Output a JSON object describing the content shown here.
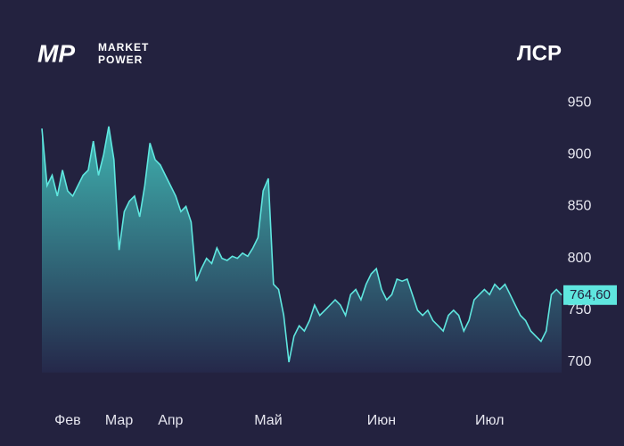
{
  "header": {
    "logo": "MP",
    "brand": [
      "MARKET",
      "POWER"
    ]
  },
  "chart_data": {
    "type": "area",
    "title": "ЛСР",
    "categories": [
      null,
      null,
      null,
      null,
      null,
      "Фев",
      null,
      null,
      null,
      null,
      null,
      null,
      null,
      null,
      null,
      "Мар",
      null,
      null,
      null,
      null,
      null,
      null,
      null,
      null,
      null,
      "Апр",
      null,
      null,
      null,
      null,
      null,
      null,
      null,
      null,
      null,
      null,
      null,
      null,
      null,
      null,
      null,
      null,
      null,
      null,
      "Май",
      null,
      null,
      null,
      null,
      null,
      null,
      null,
      null,
      null,
      null,
      null,
      null,
      null,
      null,
      null,
      null,
      null,
      null,
      null,
      null,
      null,
      "Июн",
      null,
      null,
      null,
      null,
      null,
      null,
      null,
      null,
      null,
      null,
      null,
      null,
      null,
      null,
      null,
      null,
      null,
      null,
      null,
      null,
      "Июл",
      null,
      null,
      null,
      null,
      null,
      null,
      null,
      null,
      null,
      null,
      null,
      null,
      null,
      null
    ],
    "series": [
      {
        "name": "ЛСР",
        "color": "#5fe6df",
        "values": [
          925,
          870,
          880,
          860,
          885,
          865,
          860,
          870,
          880,
          885,
          913,
          880,
          900,
          927,
          895,
          808,
          845,
          855,
          860,
          840,
          870,
          911,
          895,
          890,
          880,
          870,
          860,
          845,
          850,
          835,
          778,
          790,
          800,
          795,
          810,
          800,
          798,
          802,
          800,
          805,
          802,
          810,
          820,
          865,
          877,
          775,
          770,
          745,
          700,
          725,
          735,
          730,
          740,
          755,
          745,
          750,
          755,
          760,
          755,
          745,
          765,
          770,
          760,
          775,
          785,
          790,
          770,
          760,
          765,
          780,
          778,
          780,
          765,
          750,
          745,
          750,
          740,
          735,
          730,
          745,
          750,
          745,
          730,
          740,
          760,
          765,
          770,
          765,
          775,
          770,
          775,
          765,
          755,
          745,
          740,
          730,
          725,
          720,
          730,
          765,
          770,
          764.6
        ],
        "value_labels": [
          null,
          null,
          null,
          null,
          null,
          null,
          null,
          null,
          null,
          null,
          null,
          null,
          null,
          null,
          null,
          null,
          null,
          null,
          null,
          null,
          null,
          null,
          null,
          null,
          null,
          null,
          null,
          null,
          null,
          null,
          null,
          null,
          null,
          null,
          null,
          null,
          null,
          null,
          null,
          null,
          null,
          null,
          null,
          null,
          null,
          null,
          null,
          null,
          null,
          null,
          null,
          null,
          null,
          null,
          null,
          null,
          null,
          null,
          null,
          null,
          null,
          null,
          null,
          null,
          null,
          null,
          null,
          null,
          null,
          null,
          null,
          null,
          null,
          null,
          null,
          null,
          null,
          null,
          null,
          null,
          null,
          null,
          null,
          null,
          null,
          null,
          null,
          null,
          null,
          null,
          null,
          null,
          null,
          null,
          null,
          null,
          null,
          null,
          null,
          null,
          null,
          "764,60"
        ]
      }
    ],
    "ylim": [
      690,
      960
    ],
    "yticks": [
      700,
      750,
      800,
      850,
      900,
      950
    ],
    "grid": false
  }
}
